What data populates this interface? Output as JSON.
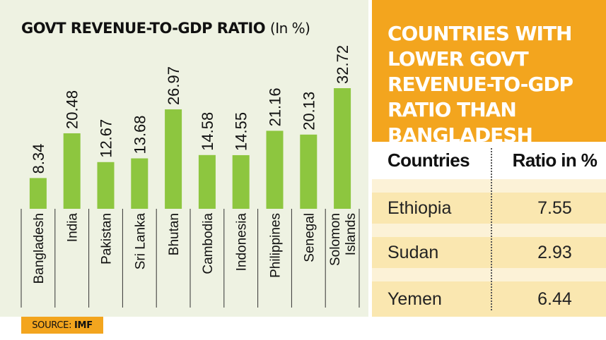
{
  "chart_data": {
    "type": "bar",
    "title": "GOVT REVENUE-TO-GDP RATIO",
    "title_unit": "(In %)",
    "categories": [
      "Bangladesh",
      "India",
      "Pakistan",
      "Sri Lanka",
      "Bhutan",
      "Cambodia",
      "Indonesia",
      "Philippines",
      "Senegal",
      "Solomon Islands"
    ],
    "category_lines": [
      [
        "Bangladesh"
      ],
      [
        "India"
      ],
      [
        "Pakistan"
      ],
      [
        "Sri Lanka"
      ],
      [
        "Bhutan"
      ],
      [
        "Cambodia"
      ],
      [
        "Indonesia"
      ],
      [
        "Philippines"
      ],
      [
        "Senegal"
      ],
      [
        "Solomon",
        "Islands"
      ]
    ],
    "values": [
      8.34,
      20.48,
      12.67,
      13.68,
      26.97,
      14.58,
      14.55,
      21.16,
      20.13,
      32.72
    ],
    "value_labels": [
      "8.34",
      "20.48",
      "12.67",
      "13.68",
      "26.97",
      "14.58",
      "14.55",
      "21.16",
      "20.13",
      "32.72"
    ],
    "ylim": [
      0,
      32.72
    ],
    "bar_color": "#8dc63f",
    "grid": false,
    "source_label": "SOURCE:",
    "source_value": "IMF"
  },
  "sidebar": {
    "title": "COUNTRIES WITH LOWER GOVT REVENUE-TO-GDP RATIO THAN BANGLADESH",
    "accent_color": "#f3a51e",
    "table": {
      "headers": [
        "Countries",
        "Ratio in %"
      ],
      "rows": [
        {
          "country": "Ethiopia",
          "ratio": "7.55"
        },
        {
          "country": "Sudan",
          "ratio": "2.93"
        },
        {
          "country": "Yemen",
          "ratio": "6.44"
        }
      ]
    }
  }
}
